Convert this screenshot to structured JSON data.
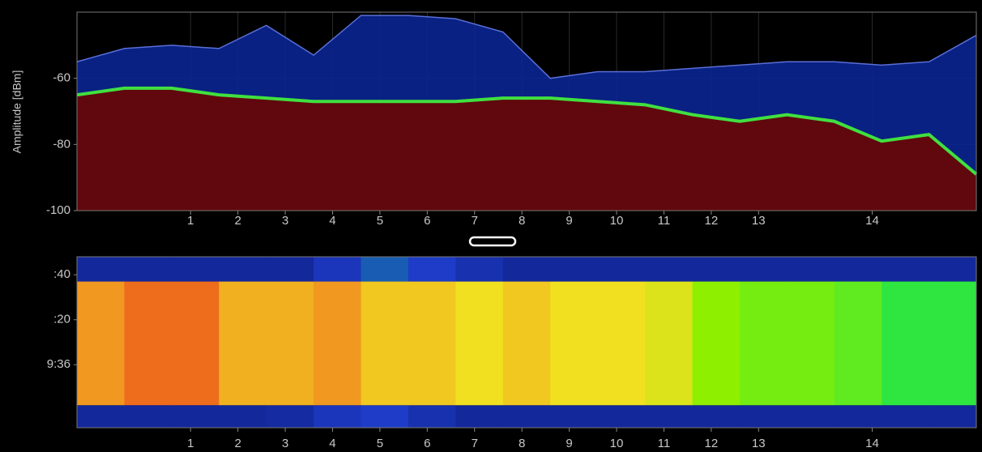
{
  "chart_data": [
    {
      "type": "line",
      "y_label": "Amplitude [dBm]",
      "x": [
        2400,
        2405,
        2410,
        2415,
        2420,
        2425,
        2430,
        2435,
        2440,
        2445,
        2450,
        2455,
        2460,
        2465,
        2470,
        2475,
        2480,
        2485,
        2490,
        2495
      ],
      "series": [
        {
          "color": "#5a6fd8",
          "fill": "#0a2590",
          "values": [
            -55,
            -51,
            -50,
            -51,
            -44,
            -53,
            -41,
            -41,
            -42,
            -46,
            -60,
            -58,
            -58,
            -57,
            -56,
            -55,
            -55,
            -56,
            -55,
            -47
          ]
        },
        {
          "color": "#40e040",
          "fill": "#6a0500",
          "values": [
            -65,
            -63,
            -63,
            -65,
            -66,
            -67,
            -67,
            -67,
            -67,
            -66,
            -66,
            -67,
            -68,
            -71,
            -73,
            -71,
            -73,
            -79,
            -77,
            -89
          ]
        }
      ],
      "xlim": [
        2400,
        2495
      ],
      "xticks": [
        {
          "value": 2412,
          "label": "1"
        },
        {
          "value": 2417,
          "label": "2"
        },
        {
          "value": 2422,
          "label": "3"
        },
        {
          "value": 2427,
          "label": "4"
        },
        {
          "value": 2432,
          "label": "5"
        },
        {
          "value": 2437,
          "label": "6"
        },
        {
          "value": 2442,
          "label": "7"
        },
        {
          "value": 2447,
          "label": "8"
        },
        {
          "value": 2452,
          "label": "9"
        },
        {
          "value": 2457,
          "label": "10"
        },
        {
          "value": 2462,
          "label": "11"
        },
        {
          "value": 2467,
          "label": "12"
        },
        {
          "value": 2472,
          "label": "13"
        },
        {
          "value": 2484,
          "label": "14"
        }
      ],
      "ylim": [
        -100,
        -40
      ],
      "yticks": [
        -100,
        -80,
        -60
      ],
      "grid": true
    },
    {
      "type": "heatmap",
      "xbins": [
        2400,
        2405,
        2410,
        2415,
        2420,
        2425,
        2430,
        2435,
        2440,
        2445,
        2450,
        2455,
        2460,
        2465,
        2470,
        2475,
        2480,
        2485,
        2490,
        2495
      ],
      "ybins": [
        -28,
        -18,
        37,
        48
      ],
      "values": [
        [
          -95,
          -95,
          -95,
          -95,
          -94,
          -90,
          -88,
          -92,
          -95,
          -95,
          -95,
          -95,
          -95,
          -95,
          -95,
          -95,
          -95,
          -95,
          -95
        ],
        [
          -64,
          -62,
          -62,
          -65,
          -65,
          -64,
          -66,
          -66,
          -67,
          -66,
          -67,
          -67,
          -68,
          -72,
          -73,
          -73,
          -74,
          -76,
          -76
        ],
        [
          -95,
          -95,
          -95,
          -95,
          -95,
          -90,
          -86,
          -88,
          -92,
          -95,
          -95,
          -95,
          -95,
          -95,
          -95,
          -95,
          -95,
          -95,
          -95
        ]
      ],
      "colorscale": [
        [
          -100,
          "#0b1a7a"
        ],
        [
          -88,
          "#1e3cc8"
        ],
        [
          -78,
          "#00e060"
        ],
        [
          -72,
          "#8ef000"
        ],
        [
          -67,
          "#f0e020"
        ],
        [
          -63,
          "#f08020"
        ],
        [
          -58,
          "#e02010"
        ]
      ],
      "xlim": [
        2400,
        2495
      ],
      "xticks": [
        {
          "value": 2412,
          "label": "1"
        },
        {
          "value": 2417,
          "label": "2"
        },
        {
          "value": 2422,
          "label": "3"
        },
        {
          "value": 2427,
          "label": "4"
        },
        {
          "value": 2432,
          "label": "5"
        },
        {
          "value": 2437,
          "label": "6"
        },
        {
          "value": 2442,
          "label": "7"
        },
        {
          "value": 2447,
          "label": "8"
        },
        {
          "value": 2452,
          "label": "9"
        },
        {
          "value": 2457,
          "label": "10"
        },
        {
          "value": 2462,
          "label": "11"
        },
        {
          "value": 2467,
          "label": "12"
        },
        {
          "value": 2472,
          "label": "13"
        },
        {
          "value": 2484,
          "label": "14"
        }
      ],
      "ylim": [
        -28,
        48
      ],
      "yticks": [
        {
          "value": 0,
          "label": "9:36"
        },
        {
          "value": 20,
          "label": ":20"
        },
        {
          "value": 40,
          "label": ":40"
        }
      ]
    }
  ]
}
